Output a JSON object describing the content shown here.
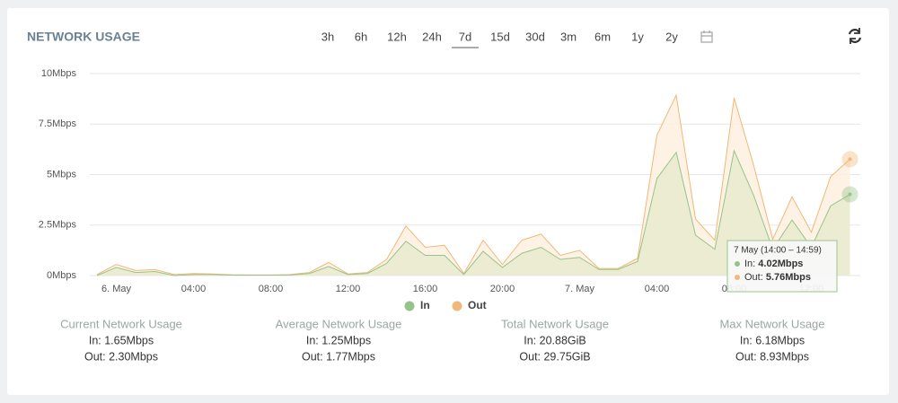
{
  "header": {
    "title": "NETWORK USAGE",
    "ranges": [
      "3h",
      "6h",
      "12h",
      "24h",
      "7d",
      "15d",
      "30d",
      "3m",
      "6m",
      "1y",
      "2y"
    ],
    "active_range": "7d"
  },
  "chart_data": {
    "type": "area",
    "categories": [
      null,
      "6. May",
      null,
      null,
      null,
      "04:00",
      null,
      null,
      null,
      "08:00",
      null,
      null,
      null,
      "12:00",
      null,
      null,
      null,
      "16:00",
      null,
      null,
      null,
      "20:00",
      null,
      null,
      null,
      "7. May",
      null,
      null,
      null,
      "04:00",
      null,
      null,
      null,
      "08:00",
      null,
      null,
      null,
      "12:00",
      null,
      null
    ],
    "series": [
      {
        "name": "Out",
        "color": "#f0b878",
        "fill": "#fdf0df",
        "values": [
          0.05,
          0.55,
          0.25,
          0.3,
          0.05,
          0.1,
          0.08,
          0.04,
          0.03,
          0.03,
          0.05,
          0.15,
          0.65,
          0.08,
          0.15,
          0.8,
          2.45,
          1.4,
          1.5,
          0.1,
          1.75,
          0.55,
          1.75,
          2.05,
          1.0,
          1.25,
          0.35,
          0.35,
          0.85,
          6.95,
          8.93,
          2.8,
          1.75,
          8.8,
          5.5,
          1.8,
          3.9,
          2.15,
          4.9,
          5.76
        ]
      },
      {
        "name": "In",
        "color": "#95c48a",
        "fill": "#e9ebcf",
        "values": [
          0.0,
          0.4,
          0.15,
          0.2,
          0.0,
          0.05,
          0.05,
          0.02,
          0.02,
          0.02,
          0.03,
          0.1,
          0.45,
          0.05,
          0.1,
          0.6,
          1.7,
          1.0,
          1.0,
          0.05,
          1.2,
          0.4,
          1.1,
          1.4,
          0.8,
          0.9,
          0.3,
          0.3,
          0.7,
          4.8,
          6.1,
          2.0,
          1.3,
          6.18,
          4.0,
          1.3,
          2.75,
          1.4,
          3.45,
          4.02
        ]
      }
    ],
    "ylim": [
      0,
      10
    ],
    "yticks": [
      {
        "value": 0,
        "label": "0Mbps"
      },
      {
        "value": 2.5,
        "label": "2.5Mbps"
      },
      {
        "value": 5,
        "label": "5Mbps"
      },
      {
        "value": 7.5,
        "label": "7.5Mbps"
      },
      {
        "value": 10,
        "label": "10Mbps"
      }
    ],
    "grid": true,
    "legend": [
      "In",
      "Out"
    ]
  },
  "tooltip": {
    "title": "7 May (14:00 – 14:59)",
    "rows": [
      {
        "label": "In: ",
        "value": "4.02Mbps"
      },
      {
        "label": "Out: ",
        "value": "5.76Mbps"
      }
    ]
  },
  "stats": [
    {
      "title": "Current Network Usage",
      "in": "In: 1.65Mbps",
      "out": "Out: 2.30Mbps"
    },
    {
      "title": "Average Network Usage",
      "in": "In: 1.25Mbps",
      "out": "Out: 1.77Mbps"
    },
    {
      "title": "Total Network Usage",
      "in": "In: 20.88GiB",
      "out": "Out: 29.75GiB"
    },
    {
      "title": "Max Network Usage",
      "in": "In: 6.18Mbps",
      "out": "Out: 8.93Mbps"
    }
  ]
}
